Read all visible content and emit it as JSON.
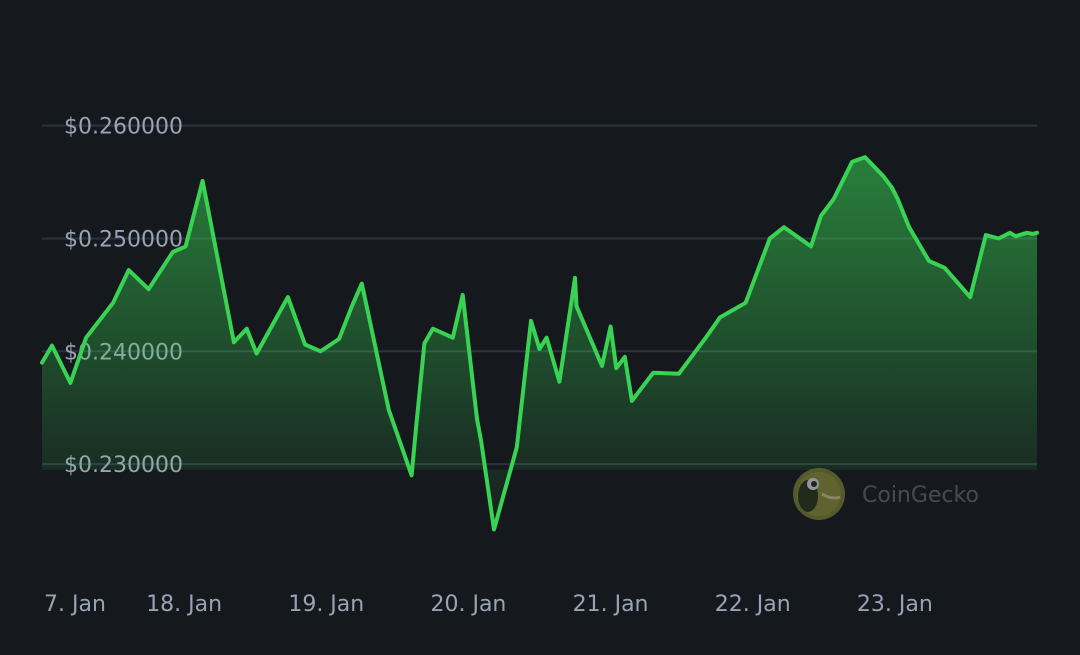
{
  "chart_data": {
    "type": "area",
    "title": "",
    "xlabel": "",
    "ylabel": "",
    "ylim": [
      0.2215,
      0.2605
    ],
    "y_ticks": [
      {
        "value": 0.26,
        "label": "$0.260000"
      },
      {
        "value": 0.25,
        "label": "$0.250000"
      },
      {
        "value": 0.24,
        "label": "$0.240000"
      },
      {
        "value": 0.23,
        "label": "$0.230000"
      }
    ],
    "x_range": [
      0,
      7
    ],
    "x_ticks": [
      {
        "value": 0.0,
        "label": "7. Jan"
      },
      {
        "value": 1.0,
        "label": "18. Jan"
      },
      {
        "value": 2.0,
        "label": "19. Jan"
      },
      {
        "value": 3.0,
        "label": "20. Jan"
      },
      {
        "value": 4.0,
        "label": "21. Jan"
      },
      {
        "value": 5.0,
        "label": "22. Jan"
      },
      {
        "value": 6.0,
        "label": "23. Jan"
      }
    ],
    "grid": true,
    "line_color": "#39d353",
    "series": [
      {
        "x": [
          0.0,
          0.07,
          0.2,
          0.31,
          0.5,
          0.61,
          0.75,
          0.92,
          1.01,
          1.13,
          1.35,
          1.44,
          1.51,
          1.73,
          1.85,
          1.96,
          2.09,
          2.18,
          2.25,
          2.44,
          2.6,
          2.63,
          2.69,
          2.75,
          2.89,
          2.96,
          3.06,
          3.09,
          3.18,
          3.34,
          3.44,
          3.5,
          3.55,
          3.64,
          3.75,
          3.76,
          3.94,
          4.0,
          4.04,
          4.1,
          4.15,
          4.3,
          4.48,
          4.67,
          4.77,
          4.95,
          5.12,
          5.22,
          5.41,
          5.48,
          5.57,
          5.7,
          5.79,
          5.92,
          5.98,
          6.02,
          6.1,
          6.24,
          6.35,
          6.53,
          6.64,
          6.73,
          6.81,
          6.85,
          6.93,
          6.97,
          7.0
        ],
        "y": [
          0.239,
          0.2405,
          0.2372,
          0.2412,
          0.2443,
          0.2472,
          0.2455,
          0.2488,
          0.2493,
          0.2551,
          0.2408,
          0.242,
          0.2398,
          0.2448,
          0.2406,
          0.24,
          0.2411,
          0.244,
          0.246,
          0.2348,
          0.229,
          0.233,
          0.2407,
          0.242,
          0.2412,
          0.245,
          0.234,
          0.232,
          0.2242,
          0.2315,
          0.2427,
          0.2402,
          0.2412,
          0.2373,
          0.2465,
          0.244,
          0.2387,
          0.2422,
          0.2385,
          0.2395,
          0.2356,
          0.2381,
          0.238,
          0.2412,
          0.243,
          0.2443,
          0.25,
          0.251,
          0.2493,
          0.252,
          0.2535,
          0.2568,
          0.2572,
          0.2555,
          0.2545,
          0.2535,
          0.251,
          0.248,
          0.2474,
          0.2448,
          0.2503,
          0.25,
          0.2505,
          0.2502,
          0.2505,
          0.2504,
          0.2505
        ]
      }
    ]
  },
  "watermark": {
    "text": "CoinGecko",
    "icon": "coingecko-logo-icon"
  }
}
